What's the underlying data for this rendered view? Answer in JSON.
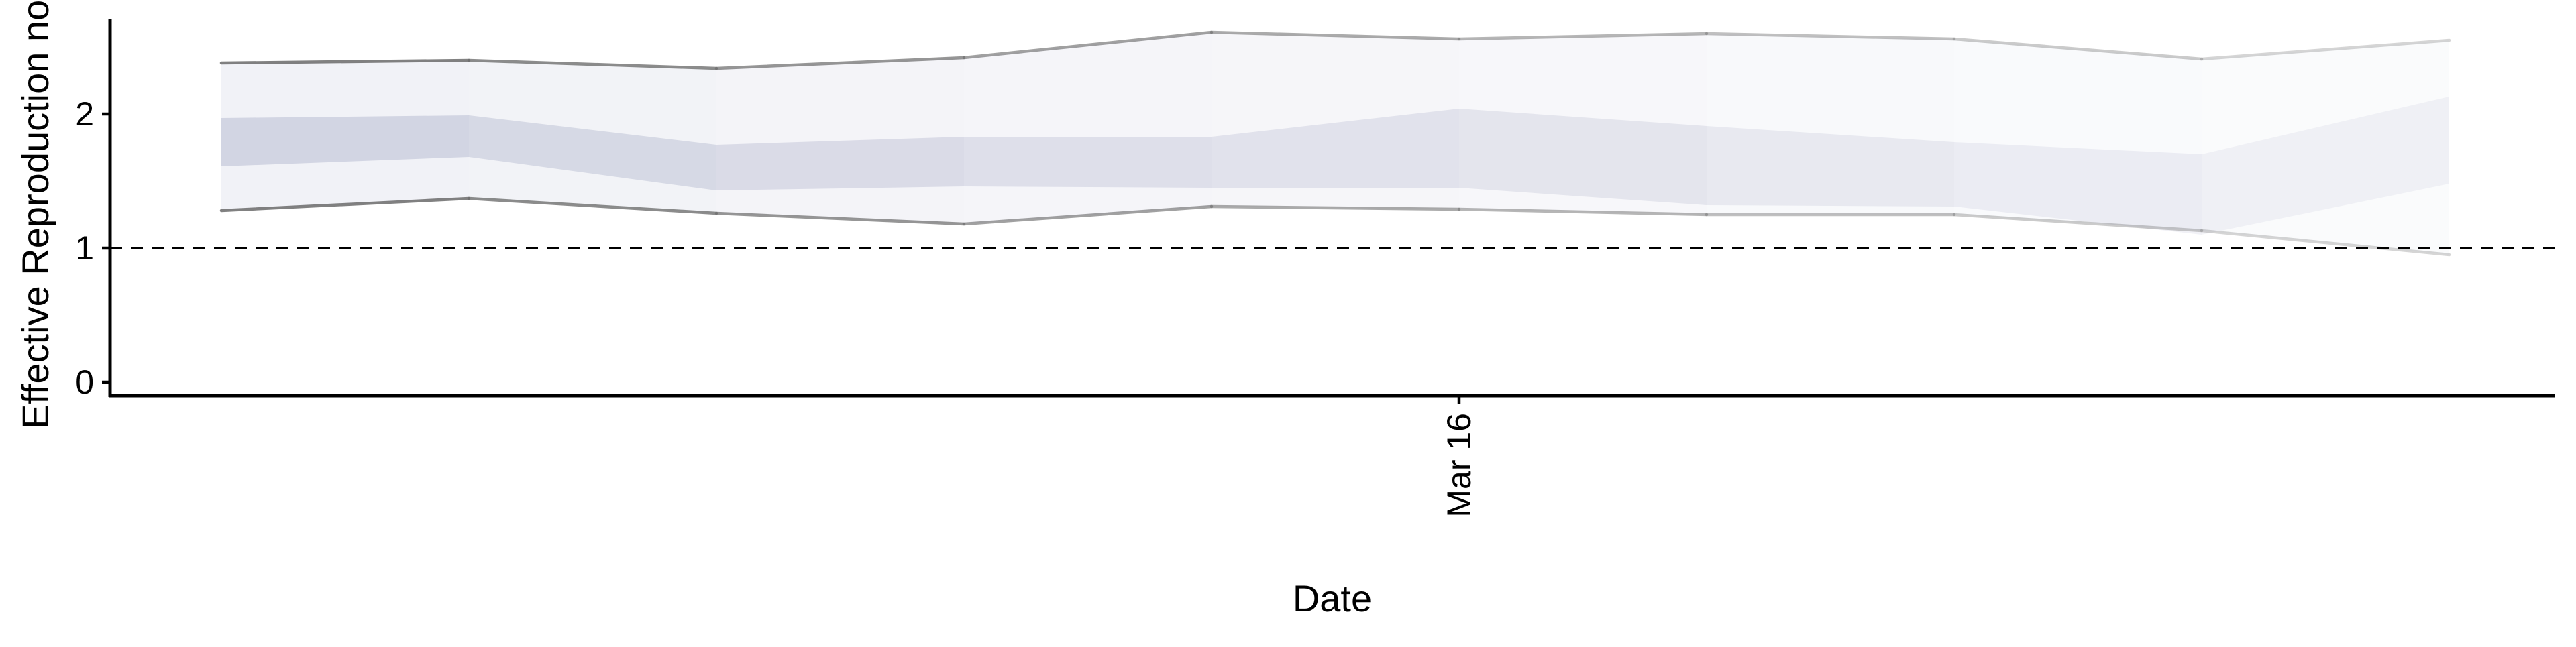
{
  "chart_data": {
    "type": "area",
    "title": "",
    "xlabel": "Date",
    "ylabel": "Effective Reproduction no.",
    "x": [
      "2020-03-11",
      "2020-03-12",
      "2020-03-13",
      "2020-03-14",
      "2020-03-15",
      "2020-03-16",
      "2020-03-17",
      "2020-03-18",
      "2020-03-19",
      "2020-03-20"
    ],
    "x_tick_labels": [
      {
        "date": "2020-03-16",
        "label": "Mar 16"
      }
    ],
    "y_tick_labels": [
      0,
      1,
      2
    ],
    "ylim": [
      -0.1,
      2.75
    ],
    "series": [
      {
        "lower_90": [
          1.28,
          1.37,
          1.26,
          1.18,
          1.31,
          1.29,
          1.25,
          1.25,
          1.13,
          0.95
        ],
        "upper_90": [
          2.38,
          2.4,
          2.34,
          2.42,
          2.61,
          2.56,
          2.6,
          2.56,
          2.41,
          2.55
        ],
        "lower_50": [
          1.61,
          1.68,
          1.43,
          1.46,
          1.45,
          1.45,
          1.32,
          1.31,
          1.1,
          1.48
        ],
        "upper_50": [
          1.97,
          1.99,
          1.77,
          1.83,
          1.83,
          2.04,
          1.91,
          1.79,
          1.7,
          2.13
        ]
      }
    ],
    "reference_line": {
      "y": 1,
      "style": "dashed"
    },
    "grid": false,
    "legend": "none",
    "colors": {
      "outer_band": "#9ea3c4",
      "inner_band": "#7d84ab",
      "bound_line": "#6b6b6b",
      "axis": "#000000"
    }
  }
}
